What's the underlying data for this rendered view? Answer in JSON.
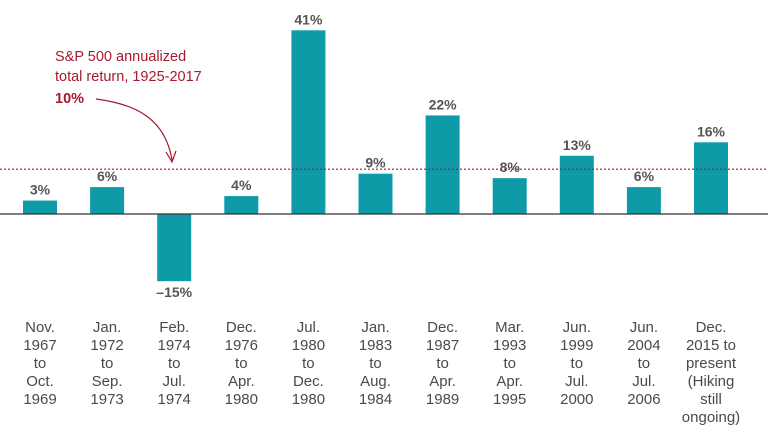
{
  "chart_data": {
    "type": "bar",
    "title": "",
    "xlabel": "",
    "ylabel": "",
    "categories": [
      [
        "Nov.",
        "1967",
        "to",
        "Oct.",
        "1969"
      ],
      [
        "Jan.",
        "1972",
        "to",
        "Sep.",
        "1973"
      ],
      [
        "Feb.",
        "1974",
        "to",
        "Jul.",
        "1974"
      ],
      [
        "Dec.",
        "1976",
        "to",
        "Apr.",
        "1980"
      ],
      [
        "Jul.",
        "1980",
        "to",
        "Dec.",
        "1980"
      ],
      [
        "Jan.",
        "1983",
        "to",
        "Aug.",
        "1984"
      ],
      [
        "Dec.",
        "1987",
        "to",
        "Apr.",
        "1989"
      ],
      [
        "Mar.",
        "1993",
        "to",
        "Apr.",
        "1995"
      ],
      [
        "Jun.",
        "1999",
        "to",
        "Jul.",
        "2000"
      ],
      [
        "Jun.",
        "2004",
        "to",
        "Jul.",
        "2006"
      ],
      [
        "Dec.",
        "2015 to",
        "present",
        "(Hiking",
        "still",
        "ongoing)"
      ]
    ],
    "values": [
      3,
      6,
      -15,
      4,
      41,
      9,
      22,
      8,
      13,
      6,
      16
    ],
    "value_labels": [
      "3%",
      "6%",
      "–15%",
      "4%",
      "41%",
      "9%",
      "22%",
      "8%",
      "13%",
      "6%",
      "16%"
    ],
    "reference_line": {
      "value": 10,
      "label_lines": [
        "S&P 500 annualized",
        "total return, 1925-2017"
      ],
      "value_label": "10%",
      "style": "dotted"
    },
    "grid": false
  },
  "colors": {
    "bar": "#0e9aa7",
    "annotation": "#a6192e",
    "axis": "#333333"
  }
}
